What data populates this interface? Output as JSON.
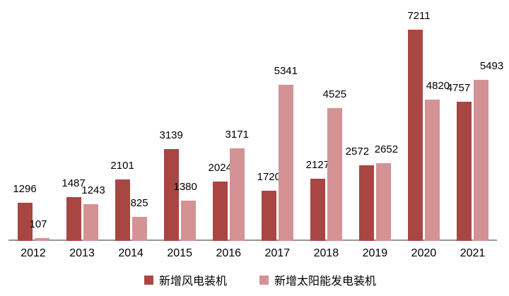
{
  "chart_data": {
    "type": "bar",
    "title": "",
    "xlabel": "",
    "ylabel": "",
    "categories": [
      "2012",
      "2013",
      "2014",
      "2015",
      "2016",
      "2017",
      "2018",
      "2019",
      "2020",
      "2021"
    ],
    "series": [
      {
        "name": "新增风电装机",
        "color": "#A94643",
        "values": [
          1296,
          1487,
          2101,
          3139,
          2024,
          1720,
          2127,
          2572,
          7211,
          4757
        ],
        "label_dx": [
          0,
          0,
          0,
          0,
          0,
          0,
          0,
          -13,
          5,
          -8
        ]
      },
      {
        "name": "新增太阳能发电装机",
        "color": "#D59294",
        "values": [
          107,
          1243,
          825,
          1380,
          3171,
          5341,
          4525,
          2652,
          4820,
          5493
        ],
        "label_dx": [
          -5,
          4,
          0,
          -4,
          0,
          0,
          0,
          4,
          8,
          15
        ]
      }
    ],
    "ylim": [
      0,
      7500
    ],
    "grid": false,
    "y_axis_visible": false,
    "data_labels": "outside-end",
    "legend_position": "bottom",
    "axis_line_color": "#969696",
    "text_color": "#000000",
    "background_color": "#FFFFFF"
  }
}
